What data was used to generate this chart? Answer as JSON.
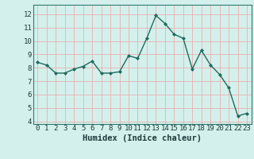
{
  "x": [
    0,
    1,
    2,
    3,
    4,
    5,
    6,
    7,
    8,
    9,
    10,
    11,
    12,
    13,
    14,
    15,
    16,
    17,
    18,
    19,
    20,
    21,
    22,
    23
  ],
  "y": [
    8.4,
    8.2,
    7.6,
    7.6,
    7.9,
    8.1,
    8.5,
    7.6,
    7.6,
    7.7,
    8.9,
    8.7,
    10.2,
    11.9,
    11.3,
    10.5,
    10.2,
    7.9,
    9.3,
    8.2,
    7.5,
    6.5,
    4.4,
    4.6
  ],
  "line_color": "#1e6b5e",
  "marker": "D",
  "marker_size": 2.0,
  "line_width": 1.0,
  "xlabel": "Humidex (Indice chaleur)",
  "xlim": [
    -0.5,
    23.5
  ],
  "ylim": [
    3.8,
    12.7
  ],
  "yticks": [
    4,
    5,
    6,
    7,
    8,
    9,
    10,
    11,
    12
  ],
  "xticks": [
    0,
    1,
    2,
    3,
    4,
    5,
    6,
    7,
    8,
    9,
    10,
    11,
    12,
    13,
    14,
    15,
    16,
    17,
    18,
    19,
    20,
    21,
    22,
    23
  ],
  "bg_color": "#d4f0ec",
  "grid_color": "#e8b0b0",
  "tick_label_fontsize": 6.5,
  "xlabel_fontsize": 7.5
}
